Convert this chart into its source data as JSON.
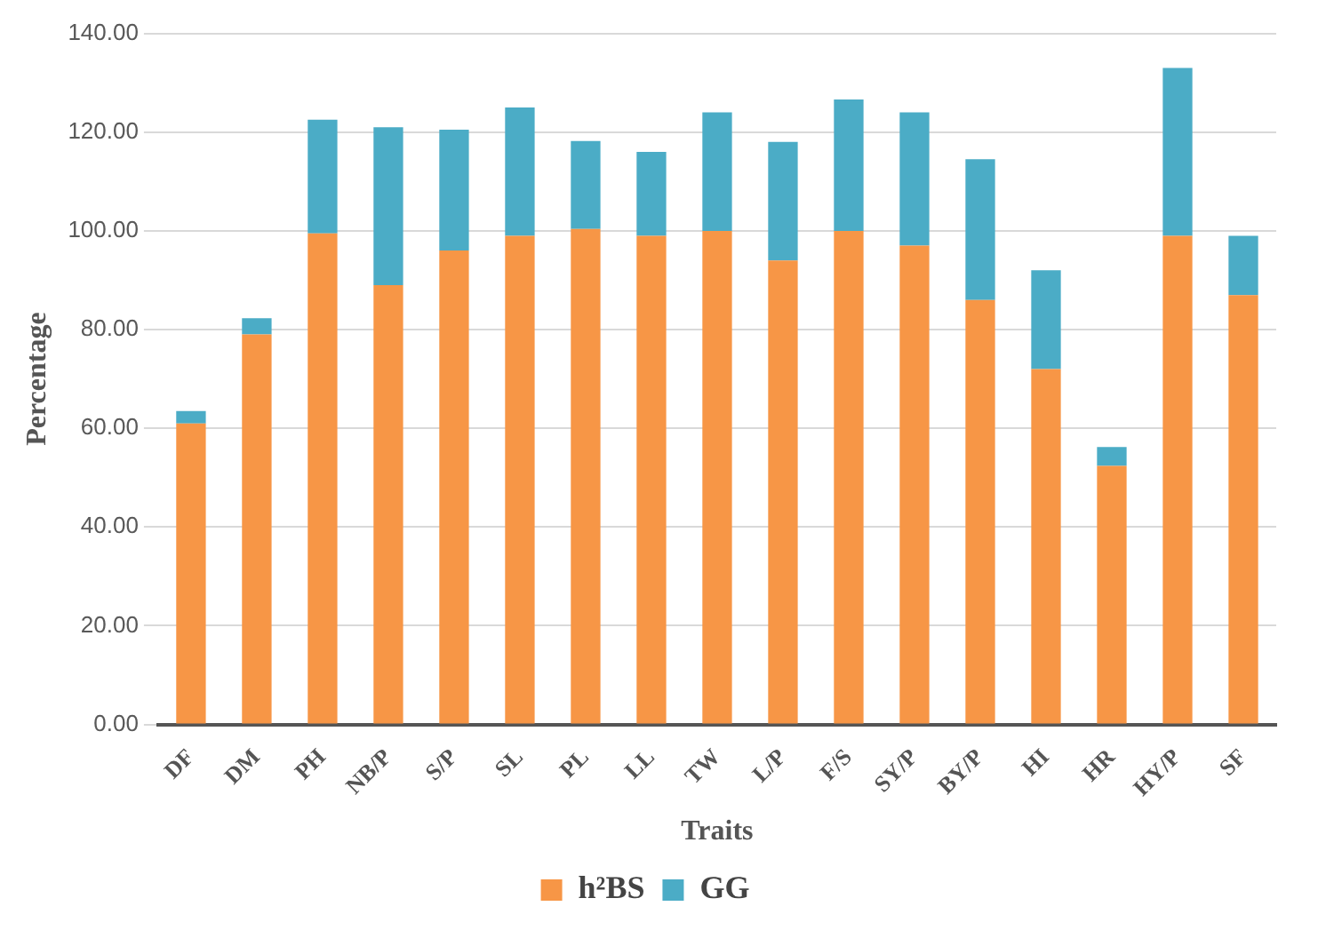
{
  "chart_data": {
    "type": "bar",
    "stacked": true,
    "xlabel": "Traits",
    "ylabel": "Percentage",
    "categories": [
      "DF",
      "DM",
      "PH",
      "NB/P",
      "S/P",
      "SL",
      "PL",
      "LL",
      "TW",
      "L/P",
      "F/S",
      "SY/P",
      "BY/P",
      "HI",
      "HR",
      "HY/P",
      "SF"
    ],
    "series": [
      {
        "name": "h²BS",
        "color": "#f79646",
        "values": [
          61,
          79,
          99.5,
          89,
          96,
          99,
          100.4,
          99,
          100,
          94,
          100,
          97,
          86,
          72,
          52.4,
          99,
          87
        ]
      },
      {
        "name": "GG",
        "color": "#4bacc6",
        "values": [
          2.5,
          3.3,
          23,
          32,
          24.5,
          26,
          17.8,
          17,
          24,
          24,
          26.6,
          27,
          28.5,
          20,
          3.8,
          34,
          12
        ]
      }
    ],
    "ylim": [
      0,
      140
    ],
    "yticks": [
      {
        "value": 0,
        "label": "0.00"
      },
      {
        "value": 20,
        "label": "20.00"
      },
      {
        "value": 40,
        "label": "40.00"
      },
      {
        "value": 60,
        "label": "60.00"
      },
      {
        "value": 80,
        "label": "80.00"
      },
      {
        "value": 100,
        "label": "100.00"
      },
      {
        "value": 120,
        "label": "120.00"
      },
      {
        "value": 140,
        "label": "140.00"
      }
    ],
    "grid": "y",
    "legend": "bottom"
  }
}
